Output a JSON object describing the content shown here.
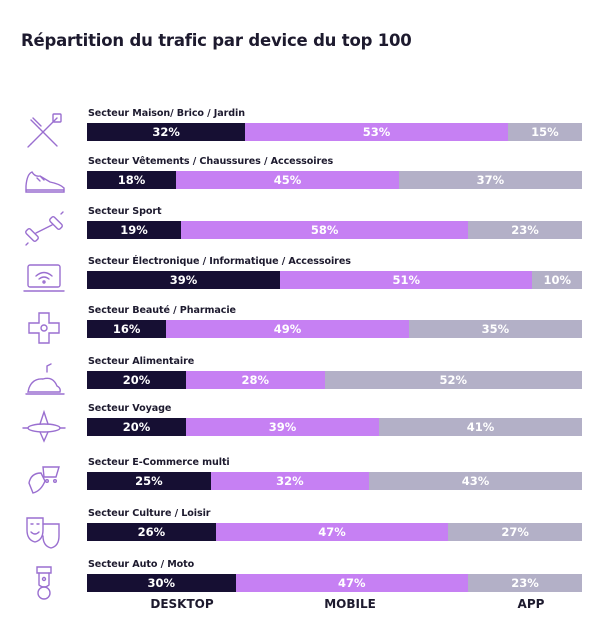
{
  "colors": {
    "desktop": "#160f33",
    "mobile": "#c680f3",
    "app": "#b3b0c7",
    "icon": "#9a6fd0"
  },
  "chart_data": {
    "type": "bar",
    "orientation": "horizontal",
    "stacked": true,
    "percent": true,
    "title": "Répartition du trafic par device du top 100",
    "categories": [
      "Secteur Maison/ Brico / Jardin",
      "Secteur Vêtements /  Chaussures / Accessoires",
      "Secteur Sport",
      "Secteur Électronique / Informatique / Accessoires",
      "Secteur Beauté / Pharmacie",
      "Secteur Alimentaire",
      "Secteur Voyage",
      "Secteur E-Commerce multi",
      "Secteur Culture / Loisir",
      "Secteur Auto / Moto"
    ],
    "icons": [
      "tools-icon",
      "sneaker-icon",
      "dumbbell-icon",
      "laptop-wifi-icon",
      "beauty-icon",
      "food-icon",
      "airplane-icon",
      "ecommerce-icon",
      "theater-masks-icon",
      "scooter-icon"
    ],
    "series": [
      {
        "name": "DESKTOP",
        "values": [
          32,
          18,
          19,
          39,
          16,
          20,
          20,
          25,
          26,
          30
        ]
      },
      {
        "name": "MOBILE",
        "values": [
          53,
          45,
          58,
          51,
          49,
          28,
          39,
          32,
          47,
          47
        ]
      },
      {
        "name": "APP",
        "values": [
          15,
          37,
          23,
          10,
          35,
          52,
          41,
          43,
          27,
          23
        ]
      }
    ],
    "legend_position": "bottom",
    "grid": false
  }
}
